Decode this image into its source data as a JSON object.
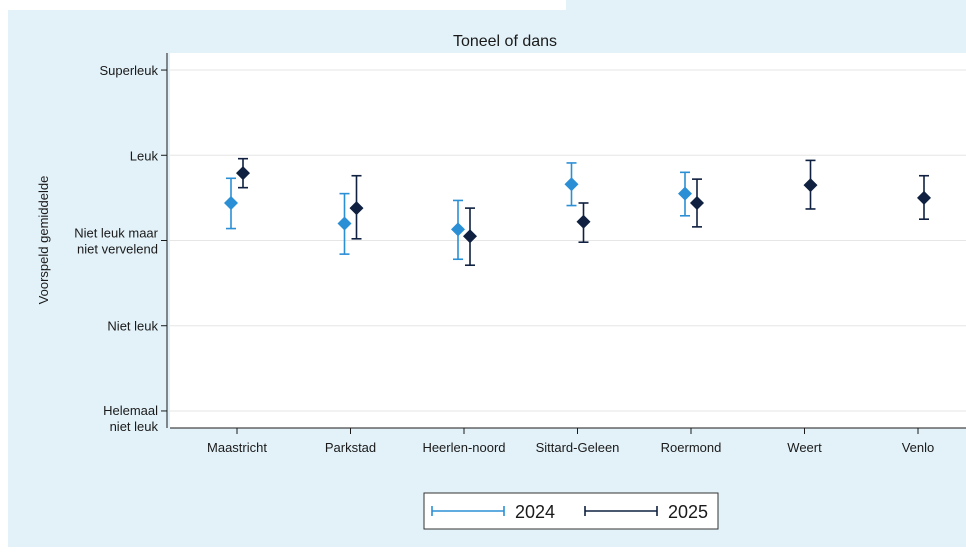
{
  "chart_data": {
    "type": "scatter",
    "title": "Toneel of dans",
    "xlabel": "",
    "ylabel": "Voorspeld gemiddelde",
    "categories": [
      "Maastricht",
      "Parkstad",
      "Heerlen-noord",
      "Sittard-Geleen",
      "Roermond",
      "Weert",
      "Venlo"
    ],
    "y_ticks": [
      {
        "value": 1,
        "label": [
          "Helemaal",
          "niet leuk"
        ]
      },
      {
        "value": 2,
        "label": [
          "Niet leuk"
        ]
      },
      {
        "value": 3,
        "label": [
          "Niet leuk maar",
          "niet vervelend"
        ]
      },
      {
        "value": 4,
        "label": [
          "Leuk"
        ]
      },
      {
        "value": 5,
        "label": [
          "Superleuk"
        ]
      }
    ],
    "ylim": [
      0.8,
      5.2
    ],
    "grid": true,
    "legend_position": "bottom",
    "series": [
      {
        "name": "2024",
        "color": "#2b8fd6",
        "marker": "diamond",
        "points": [
          {
            "category": "Maastricht",
            "y": 3.44,
            "low": 3.14,
            "high": 3.73
          },
          {
            "category": "Parkstad",
            "y": 3.2,
            "low": 2.84,
            "high": 3.55
          },
          {
            "category": "Heerlen-noord",
            "y": 3.13,
            "low": 2.78,
            "high": 3.47
          },
          {
            "category": "Sittard-Geleen",
            "y": 3.66,
            "low": 3.41,
            "high": 3.91
          },
          {
            "category": "Roermond",
            "y": 3.55,
            "low": 3.29,
            "high": 3.8
          }
        ]
      },
      {
        "name": "2025",
        "color": "#0f2040",
        "marker": "diamond",
        "points": [
          {
            "category": "Maastricht",
            "y": 3.79,
            "low": 3.62,
            "high": 3.96
          },
          {
            "category": "Parkstad",
            "y": 3.38,
            "low": 3.02,
            "high": 3.76
          },
          {
            "category": "Heerlen-noord",
            "y": 3.05,
            "low": 2.71,
            "high": 3.38
          },
          {
            "category": "Sittard-Geleen",
            "y": 3.22,
            "low": 2.98,
            "high": 3.44
          },
          {
            "category": "Roermond",
            "y": 3.44,
            "low": 3.16,
            "high": 3.72
          },
          {
            "category": "Weert",
            "y": 3.65,
            "low": 3.37,
            "high": 3.94
          },
          {
            "category": "Venlo",
            "y": 3.5,
            "low": 3.25,
            "high": 3.76
          }
        ]
      }
    ]
  }
}
